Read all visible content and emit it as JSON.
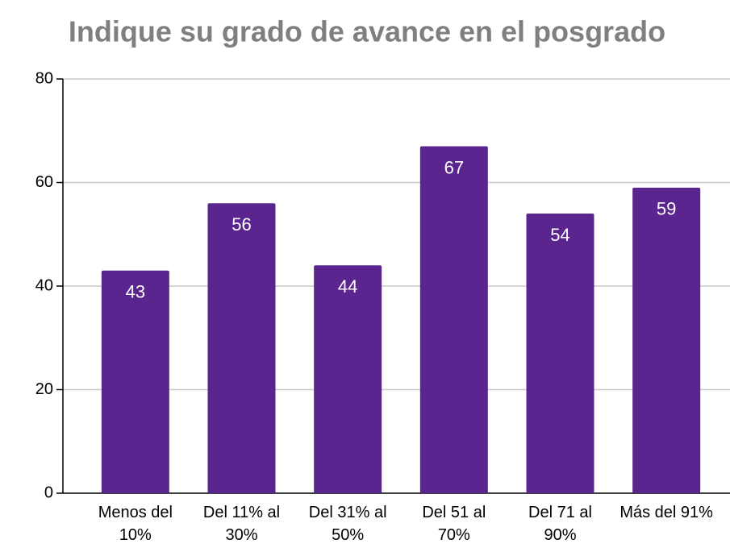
{
  "chart_data": {
    "type": "bar",
    "title": "Indique su grado de avance en el posgrado",
    "categories": [
      "Menos del 10%",
      "Del 11% al 30%",
      "Del 31% al 50%",
      "Del 51 al 70%",
      "Del 71 al 90%",
      "Más del 91%"
    ],
    "values": [
      43,
      56,
      44,
      67,
      54,
      59
    ],
    "color": "#5b2590",
    "ylim": [
      0,
      80
    ],
    "yticks": [
      0,
      20,
      40,
      60,
      80
    ],
    "grid": true
  }
}
